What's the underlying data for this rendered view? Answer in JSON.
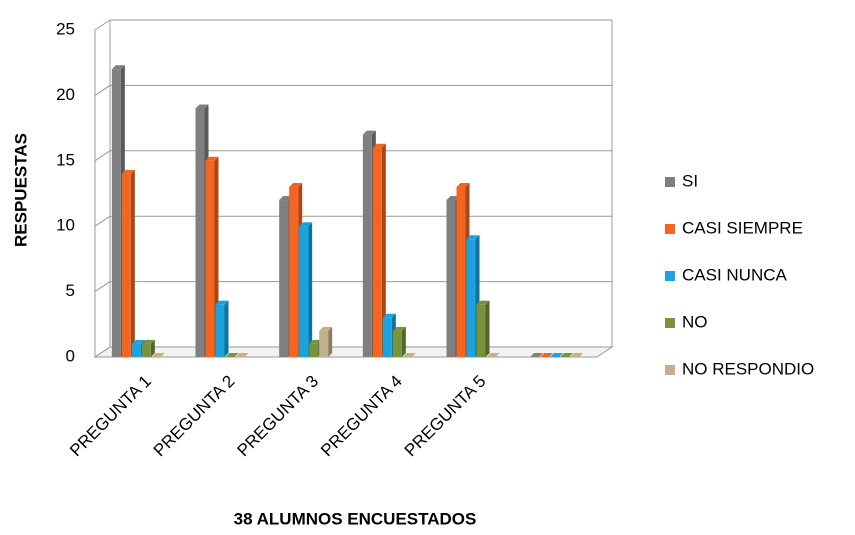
{
  "chart_data": {
    "type": "bar",
    "y_label": "RESPUESTAS",
    "x_label": "38 ALUMNOS ENCUESTADOS",
    "categories": [
      "PREGUNTA 1",
      "PREGUNTA 2",
      "PREGUNTA 3",
      "PREGUNTA 4",
      "PREGUNTA 5",
      null
    ],
    "series": [
      {
        "name": "SI",
        "color": "#7f7f7f",
        "values": [
          22,
          19,
          12,
          17,
          12,
          0
        ]
      },
      {
        "name": "CASI SIEMPRE",
        "color": "#f26522",
        "values": [
          14,
          15,
          13,
          16,
          13,
          0
        ]
      },
      {
        "name": "CASI NUNCA",
        "color": "#1aa3dc",
        "values": [
          1,
          4,
          10,
          3,
          9,
          0
        ]
      },
      {
        "name": "NO",
        "color": "#77933c",
        "values": [
          1,
          0,
          1,
          2,
          4,
          0
        ]
      },
      {
        "name": "NO RESPONDIO",
        "color": "#c4b08c",
        "values": [
          0,
          0,
          2,
          0,
          0,
          0
        ]
      }
    ],
    "ylim": [
      0,
      25
    ],
    "yticks": [
      0,
      5,
      10,
      15,
      20,
      25
    ],
    "grid": true,
    "legend": "right"
  }
}
